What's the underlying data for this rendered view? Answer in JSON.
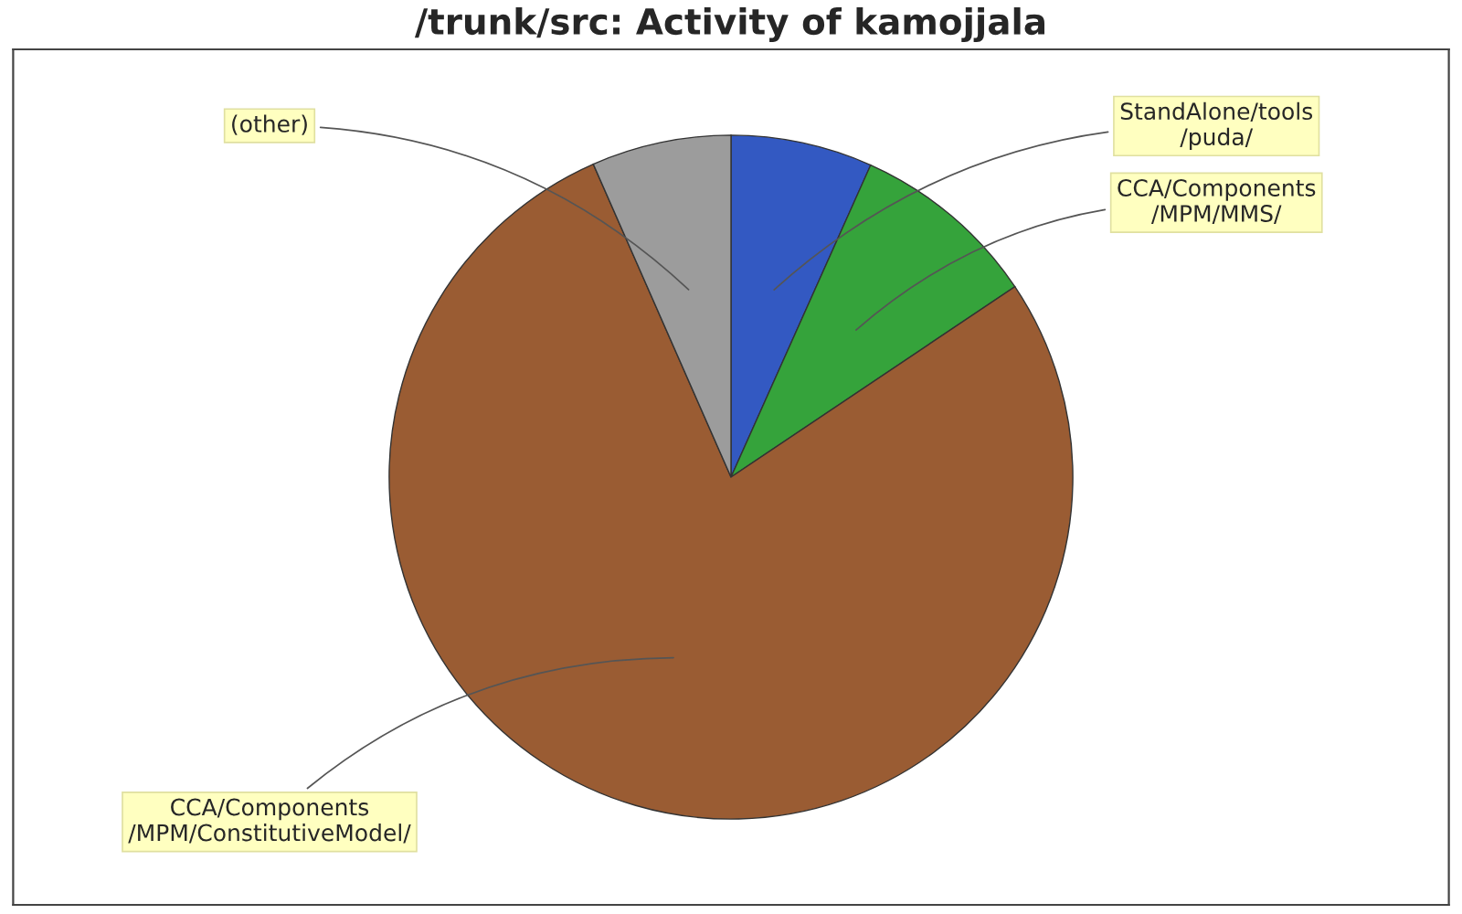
{
  "chart_data": {
    "type": "pie",
    "title": "/trunk/src: Activity of kamojjala",
    "categories": [
      "StandAlone/tools\n/puda/",
      "CCA/Components\n/MPM/MMS/",
      "CCA/Components\n/MPM/ConstitutiveModel/",
      "(other)"
    ],
    "values": [
      6.7,
      8.9,
      77.8,
      6.6
    ],
    "colors": [
      "#3359c2",
      "#35a33b",
      "#9a5c33",
      "#9c9c9c"
    ]
  }
}
